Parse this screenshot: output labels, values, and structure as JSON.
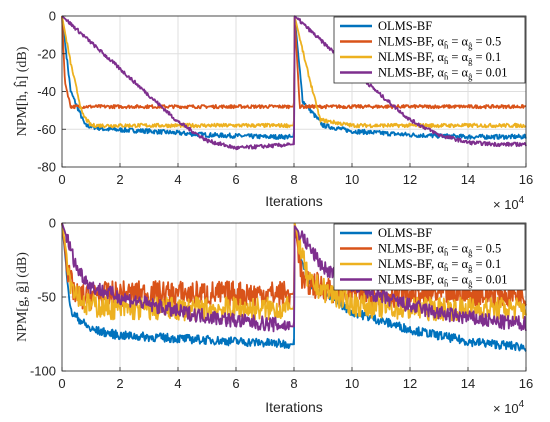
{
  "chart_data": [
    {
      "type": "line",
      "ylabel": "NPM[h, ĥ] (dB)",
      "xlabel": "Iterations",
      "x_exponent": "× 10^4",
      "xlim": [
        0,
        16
      ],
      "ylim": [
        -80,
        0
      ],
      "xticks": [
        "0",
        "2",
        "4",
        "6",
        "8",
        "10",
        "12",
        "14",
        "16"
      ],
      "yticks": [
        "0",
        "-20",
        "-40",
        "-60",
        "-80"
      ],
      "grid": true,
      "legend_position": "top-right",
      "series": [
        {
          "name": "OLMS-BF",
          "color": "#0072BD",
          "x": [
            0,
            0.3,
            0.8,
            1.5,
            3,
            5,
            7,
            8,
            8.02,
            8.3,
            9,
            10,
            12,
            14,
            16
          ],
          "y": [
            0,
            -40,
            -58,
            -60,
            -61,
            -63,
            -64,
            -64,
            0,
            -45,
            -58,
            -61,
            -63,
            -64,
            -64
          ]
        },
        {
          "name": "NLMS-BF, α = 0.5",
          "color": "#D95319",
          "x": [
            0,
            0.1,
            0.3,
            1,
            4,
            8,
            8.02,
            8.2,
            9,
            12,
            16
          ],
          "y": [
            0,
            -35,
            -48,
            -48,
            -48,
            -48,
            0,
            -48,
            -48,
            -48,
            -48
          ]
        },
        {
          "name": "NLMS-BF, α = 0.1",
          "color": "#EDB120",
          "x": [
            0,
            0.3,
            0.7,
            1,
            3,
            6,
            8,
            8.02,
            8.4,
            8.9,
            10,
            14,
            16
          ],
          "y": [
            0,
            -25,
            -52,
            -58,
            -58,
            -58,
            -58,
            0,
            -25,
            -55,
            -58,
            -58,
            -58
          ]
        },
        {
          "name": "NLMS-BF, α = 0.01",
          "color": "#7E2F8E",
          "x": [
            0,
            1,
            2,
            3,
            4,
            5,
            6,
            7,
            8,
            8.02,
            9,
            10,
            11,
            12,
            13,
            14,
            15,
            16
          ],
          "y": [
            0,
            -14,
            -28,
            -42,
            -56,
            -66,
            -70,
            -69,
            -68,
            0,
            -14,
            -28,
            -42,
            -55,
            -63,
            -67,
            -68,
            -68
          ]
        }
      ]
    },
    {
      "type": "line",
      "ylabel": "NPM[g, ĝ] (dB)",
      "xlabel": "Iterations",
      "x_exponent": "× 10^4",
      "xlim": [
        0,
        16
      ],
      "ylim": [
        -100,
        0
      ],
      "xticks": [
        "0",
        "2",
        "4",
        "6",
        "8",
        "10",
        "12",
        "14",
        "16"
      ],
      "yticks": [
        "0",
        "-50",
        "-100"
      ],
      "grid": true,
      "legend_position": "top-right",
      "series": [
        {
          "name": "OLMS-BF",
          "color": "#0072BD",
          "x": [
            0,
            0.3,
            1,
            2,
            4,
            6,
            8,
            8.02,
            8.5,
            10,
            12,
            14,
            16
          ],
          "y": [
            0,
            -60,
            -72,
            -76,
            -78,
            -80,
            -82,
            -5,
            -40,
            -60,
            -72,
            -80,
            -84
          ]
        },
        {
          "name": "NLMS-BF, α = 0.5",
          "color": "#D95319",
          "x": [
            0,
            0.2,
            0.5,
            2,
            4,
            6,
            8,
            8.02,
            8.3,
            10,
            12,
            14,
            16
          ],
          "y": [
            0,
            -35,
            -50,
            -48,
            -48,
            -48,
            -48,
            0,
            -40,
            -48,
            -48,
            -48,
            -48
          ]
        },
        {
          "name": "NLMS-BF, α = 0.1",
          "color": "#EDB120",
          "x": [
            0,
            0.3,
            0.8,
            2,
            4,
            6,
            8,
            8.02,
            8.5,
            10,
            12,
            14,
            16
          ],
          "y": [
            0,
            -40,
            -55,
            -58,
            -58,
            -58,
            -58,
            0,
            -40,
            -55,
            -58,
            -58,
            -58
          ]
        },
        {
          "name": "NLMS-BF, α = 0.01",
          "color": "#7E2F8E",
          "x": [
            0,
            0.5,
            1,
            2,
            3,
            4,
            5,
            6,
            7,
            8,
            8.02,
            9,
            10,
            11,
            12,
            13,
            14,
            15,
            16
          ],
          "y": [
            0,
            -30,
            -43,
            -50,
            -55,
            -60,
            -63,
            -66,
            -68,
            -70,
            -2,
            -30,
            -42,
            -50,
            -56,
            -61,
            -64,
            -67,
            -68
          ]
        }
      ]
    }
  ],
  "legend_labels": {
    "olms": "OLMS-BF",
    "nlms_prefix": "NLMS-BF, ",
    "alpha_05": "= 0.5",
    "alpha_01": "= 0.1",
    "alpha_001": "= 0.01"
  }
}
